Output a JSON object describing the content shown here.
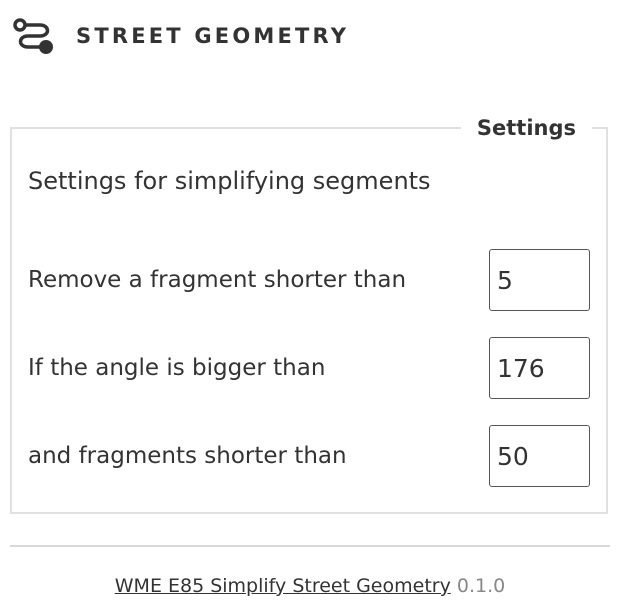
{
  "header": {
    "icon": "route-icon",
    "title": "STREET GEOMETRY"
  },
  "settings": {
    "legend": "Settings",
    "subtitle": "Settings for simplifying segments",
    "fields": [
      {
        "label": "Remove a fragment shorter than",
        "value": "5"
      },
      {
        "label": "If the angle is bigger than",
        "value": "176"
      },
      {
        "label": "and fragments shorter than",
        "value": "50"
      }
    ]
  },
  "footer": {
    "link_text": "WME E85 Simplify Street Geometry",
    "version": "0.1.0"
  },
  "colors": {
    "text": "#333333",
    "border": "#e0e0e0",
    "divider": "#d8d8d8",
    "version_text": "#888888"
  }
}
